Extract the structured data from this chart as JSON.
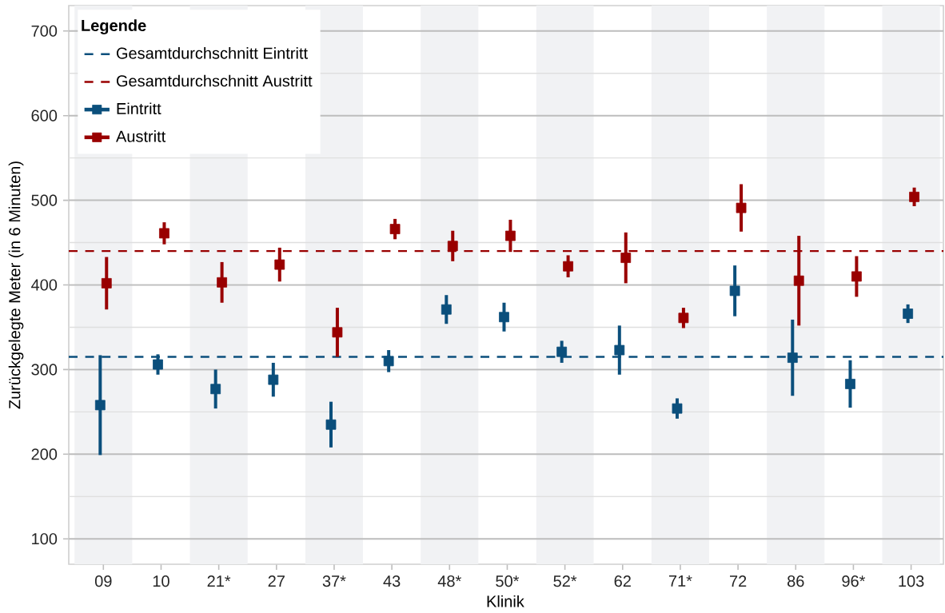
{
  "chart_data": {
    "type": "scatter",
    "xlabel": "Klinik",
    "ylabel": "Zurückgelegte Meter (in 6 Minuten)",
    "legend_title": "Legende",
    "categories": [
      "09",
      "10",
      "21*",
      "27",
      "37*",
      "43",
      "48*",
      "50*",
      "52*",
      "62",
      "71*",
      "72",
      "86",
      "96*",
      "103"
    ],
    "series": [
      {
        "name": "Eintritt",
        "color": "#0b4f7c",
        "values": [
          258,
          306,
          277,
          288,
          235,
          310,
          371,
          362,
          321,
          323,
          254,
          393,
          314,
          283,
          366
        ],
        "errors": [
          59,
          12,
          23,
          20,
          27,
          13,
          17,
          17,
          13,
          29,
          12,
          30,
          45,
          28,
          11
        ]
      },
      {
        "name": "Austritt",
        "color": "#990000",
        "values": [
          402,
          461,
          403,
          424,
          344,
          466,
          446,
          458,
          422,
          432,
          361,
          491,
          405,
          410,
          504
        ],
        "errors": [
          31,
          13,
          24,
          20,
          29,
          12,
          18,
          19,
          13,
          30,
          12,
          28,
          53,
          24,
          11
        ]
      }
    ],
    "ylim": [
      70,
      730
    ],
    "yticks": [
      100,
      {
        "value": 150,
        "label": null
      },
      200,
      {
        "value": 250,
        "label": null
      },
      300,
      {
        "value": 350,
        "label": null
      },
      400,
      {
        "value": 450,
        "label": null
      },
      500,
      {
        "value": 550,
        "label": null
      },
      600,
      {
        "value": 650,
        "label": null
      },
      700
    ],
    "ref_lines": [
      {
        "axis": "y",
        "value": 315,
        "label": "Gesamtdurchschnitt Eintritt",
        "color": "#0b4f7c",
        "line_style": "dashed"
      },
      {
        "axis": "y",
        "value": 440,
        "label": "Gesamtdurchschnitt Austritt",
        "color": "#990000",
        "line_style": "dashed"
      }
    ],
    "grid": "y",
    "legend": "top left",
    "marker": "square"
  }
}
